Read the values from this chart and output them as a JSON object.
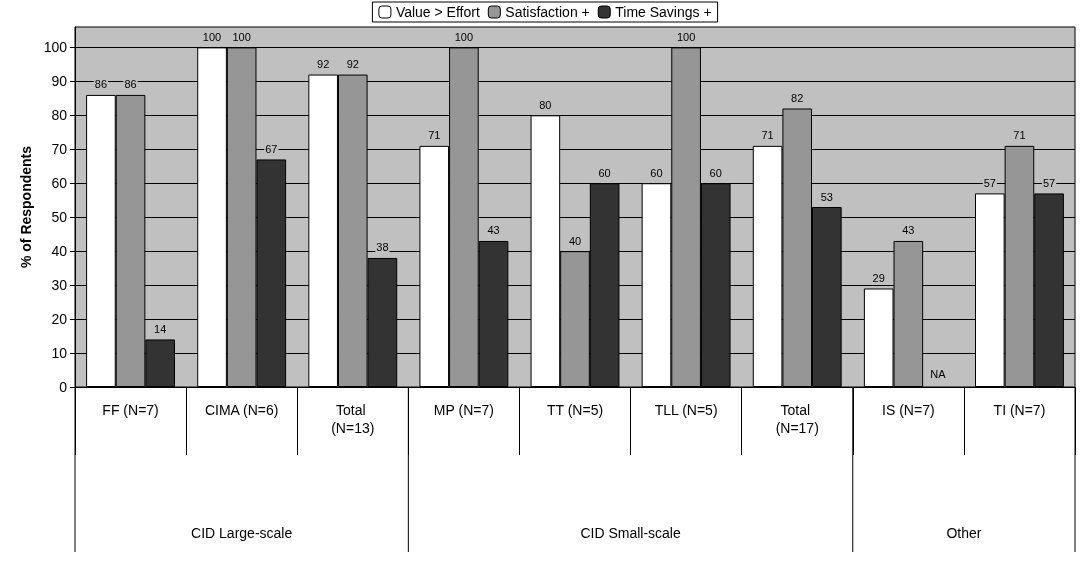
{
  "chart_data": {
    "type": "bar",
    "categories": [
      "FF (N=7)",
      "CIMA (N=6)",
      "Total (N=13)",
      "MP (N=7)",
      "TT (N=5)",
      "TLL (N=5)",
      "Total (N=17)",
      "IS (N=7)",
      "TI (N=7)"
    ],
    "series": [
      {
        "name": "Value > Effort",
        "color": "#ffffff",
        "values": [
          86,
          100,
          92,
          71,
          80,
          60,
          71,
          29,
          57
        ],
        "value_labels": [
          "86",
          "100",
          "92",
          "71",
          "80",
          "60",
          "71",
          "29",
          "57"
        ]
      },
      {
        "name": "Satisfaction +",
        "color": "#969696",
        "values": [
          86,
          100,
          92,
          100,
          40,
          100,
          82,
          43,
          71
        ],
        "value_labels": [
          "86",
          "100",
          "92",
          "100",
          "40",
          "100",
          "82",
          "43",
          "71"
        ]
      },
      {
        "name": "Time Savings +",
        "color": "#333333",
        "values": [
          14,
          67,
          38,
          43,
          60,
          60,
          53,
          null,
          57
        ],
        "value_labels": [
          "14",
          "67",
          "38",
          "43",
          "60",
          "60",
          "53",
          "NA",
          "57"
        ]
      }
    ],
    "ylabel": "% of Respondents",
    "ylim": [
      0,
      106
    ],
    "yticks": [
      0,
      10,
      20,
      30,
      40,
      50,
      60,
      70,
      80,
      90,
      100
    ],
    "grid": "y",
    "legend": "top",
    "annotations": [
      "CID Large-scale",
      "CID Small-scale",
      "Other"
    ]
  }
}
